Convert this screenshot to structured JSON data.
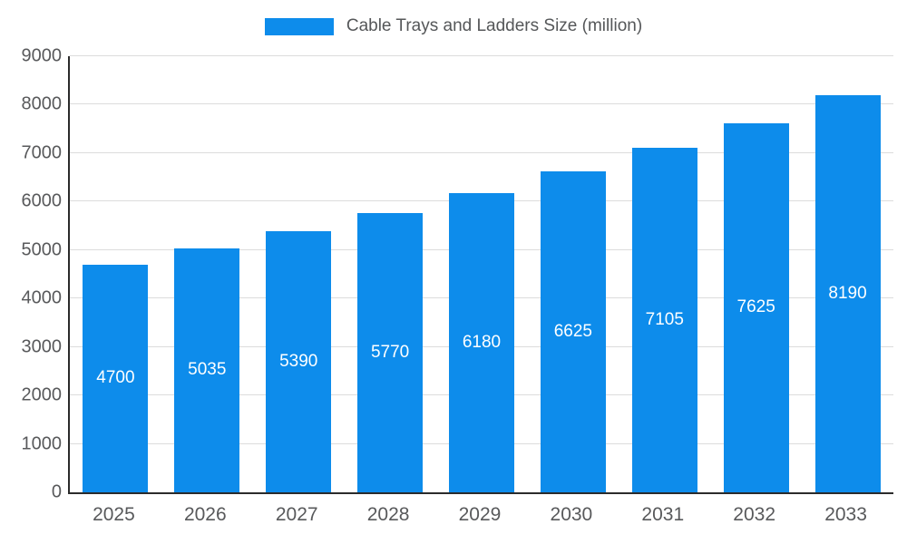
{
  "legend": {
    "title": "Cable Trays and Ladders Size (million)"
  },
  "colors": {
    "bar": "#0d8ceb",
    "value_label": "#ffffff",
    "tick_label": "#58595b",
    "gridline": "#dcdcdc",
    "axis_line": "#2b2b2b"
  },
  "chart_data": {
    "type": "bar",
    "title": "Cable Trays and Ladders Size (million)",
    "categories": [
      "2025",
      "2026",
      "2027",
      "2028",
      "2029",
      "2030",
      "2031",
      "2032",
      "2033"
    ],
    "values": [
      4700,
      5035,
      5390,
      5770,
      6180,
      6625,
      7105,
      7625,
      8190
    ],
    "xlabel": "",
    "ylabel": "",
    "ylim": [
      0,
      9000
    ],
    "ytick_step": 1000,
    "yticks": [
      0,
      1000,
      2000,
      3000,
      4000,
      5000,
      6000,
      7000,
      8000,
      9000
    ],
    "grid": true,
    "legend_position": "top",
    "value_labels": "inside-center"
  }
}
